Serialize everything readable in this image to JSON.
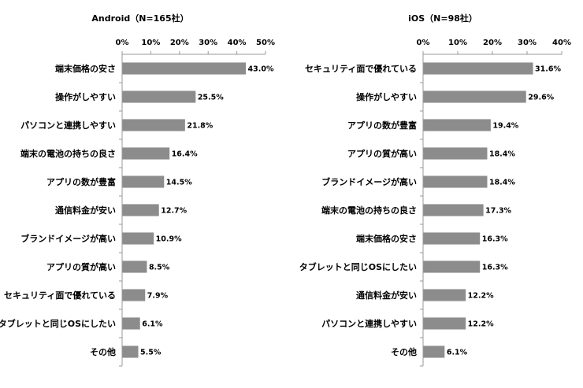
{
  "chart_data": [
    {
      "type": "bar",
      "orientation": "horizontal",
      "title": "Android（N=165社）",
      "categories": [
        "端末価格の安さ",
        "操作がしやすい",
        "パソコンと連携しやすい",
        "端末の電池の持ちの良さ",
        "アプリの数が豊富",
        "通信料金が安い",
        "ブランドイメージが高い",
        "アプリの質が高い",
        "セキュリティ面で優れている",
        "タブレットと同じOSにしたい",
        "その他"
      ],
      "values": [
        43.0,
        25.5,
        21.8,
        16.4,
        14.5,
        12.7,
        10.9,
        8.5,
        7.9,
        6.1,
        5.5
      ],
      "value_labels": [
        "43.0%",
        "25.5%",
        "21.8%",
        "16.4%",
        "14.5%",
        "12.7%",
        "10.9%",
        "8.5%",
        "7.9%",
        "6.1%",
        "5.5%"
      ],
      "xlim": [
        0,
        50
      ],
      "ticks": [
        "0%",
        "10%",
        "20%",
        "30%",
        "40%",
        "50%"
      ],
      "axis_position": "top",
      "grid": false,
      "bar_color": "#8c8c8c"
    },
    {
      "type": "bar",
      "orientation": "horizontal",
      "title": "iOS（N=98社）",
      "categories": [
        "セキュリティ面で優れている",
        "操作がしやすい",
        "アプリの数が豊富",
        "アプリの質が高い",
        "ブランドイメージが高い",
        "端末の電池の持ちの良さ",
        "端末価格の安さ",
        "タブレットと同じOSにしたい",
        "通信料金が安い",
        "パソコンと連携しやすい",
        "その他"
      ],
      "values": [
        31.6,
        29.6,
        19.4,
        18.4,
        18.4,
        17.3,
        16.3,
        16.3,
        12.2,
        12.2,
        6.1
      ],
      "value_labels": [
        "31.6%",
        "29.6%",
        "19.4%",
        "18.4%",
        "18.4%",
        "17.3%",
        "16.3%",
        "16.3%",
        "12.2%",
        "12.2%",
        "6.1%"
      ],
      "xlim": [
        0,
        40
      ],
      "ticks": [
        "0%",
        "10%",
        "20%",
        "30%",
        "40%"
      ],
      "axis_position": "top",
      "grid": false,
      "bar_color": "#8c8c8c"
    }
  ]
}
